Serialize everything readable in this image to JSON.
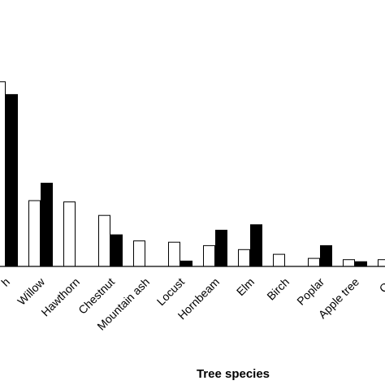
{
  "chart_data": {
    "type": "bar",
    "title": "",
    "xlabel": "Tree species",
    "ylabel": "",
    "categories": [
      "Birch/Beech (cropped, ends in \"h\")",
      "Willow",
      "Hawthorn",
      "Chestnut",
      "Mountain ash",
      "Locust",
      "Hornbeam",
      "Elm",
      "Birch",
      "Poplar",
      "Apple tree",
      "Oa (cropped)"
    ],
    "tick_labels": [
      "h",
      "Willow",
      "Hawthorn",
      "Chestnut",
      "Mountain ash",
      "Locust",
      "Hornbeam",
      "Elm",
      "Birch",
      "Poplar",
      "Apple tree",
      "Oa"
    ],
    "series": [
      {
        "values": [
          27.5,
          9.8,
          9.6,
          7.6,
          3.8,
          3.6,
          3.1,
          2.5,
          1.8,
          1.2,
          1.0,
          1.0
        ],
        "color": "#ffffff",
        "stroke": "#000000"
      },
      {
        "values": [
          25.6,
          12.4,
          0,
          4.7,
          0,
          0.8,
          5.4,
          6.2,
          0,
          3.1,
          0.7,
          0
        ],
        "color": "#000000",
        "stroke": "#000000"
      }
    ],
    "ylim": [
      0,
      30
    ],
    "grid": false,
    "legend": "none"
  }
}
